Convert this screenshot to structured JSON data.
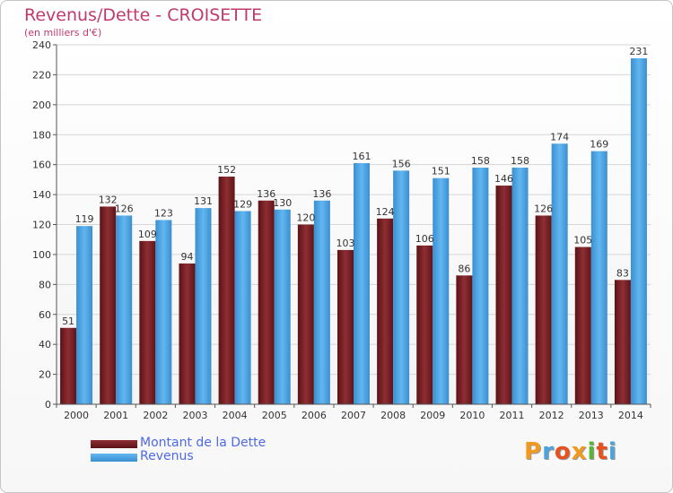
{
  "header": {
    "title": "Revenus/Dette - CROISETTE",
    "subtitle": "(en milliers d'€)"
  },
  "colors": {
    "title": "#c03a6e",
    "dette": "#7a2428",
    "revenus": "#4da6e6",
    "legend_text": "#4f69e8"
  },
  "legend": {
    "items": [
      {
        "label": "Montant de la Dette",
        "color": "#7a2428"
      },
      {
        "label": "Revenus",
        "color": "#4da6e6"
      }
    ]
  },
  "logo": {
    "text": "Proxiti",
    "letter_colors": [
      "#f29a1f",
      "#4da3dc",
      "#e8501e",
      "#f29a1f",
      "#5ab535",
      "#e8501e",
      "#4da3dc"
    ]
  },
  "chart_data": {
    "type": "bar",
    "title": "Revenus/Dette - CROISETTE",
    "subtitle": "(en milliers d'€)",
    "categories": [
      "2000",
      "2001",
      "2002",
      "2003",
      "2004",
      "2005",
      "2006",
      "2007",
      "2008",
      "2009",
      "2010",
      "2011",
      "2012",
      "2013",
      "2014"
    ],
    "series": [
      {
        "name": "Montant de la Dette",
        "values": [
          51,
          132,
          109,
          94,
          152,
          136,
          120,
          103,
          124,
          106,
          86,
          146,
          126,
          105,
          83
        ]
      },
      {
        "name": "Revenus",
        "values": [
          119,
          126,
          123,
          131,
          129,
          130,
          136,
          161,
          156,
          151,
          158,
          158,
          174,
          169,
          231
        ]
      }
    ],
    "ylim": [
      0,
      240
    ],
    "yticks": [
      0,
      20,
      40,
      60,
      80,
      100,
      120,
      140,
      160,
      180,
      200,
      220,
      240
    ],
    "grid": true,
    "legend_position": "bottom-left"
  }
}
